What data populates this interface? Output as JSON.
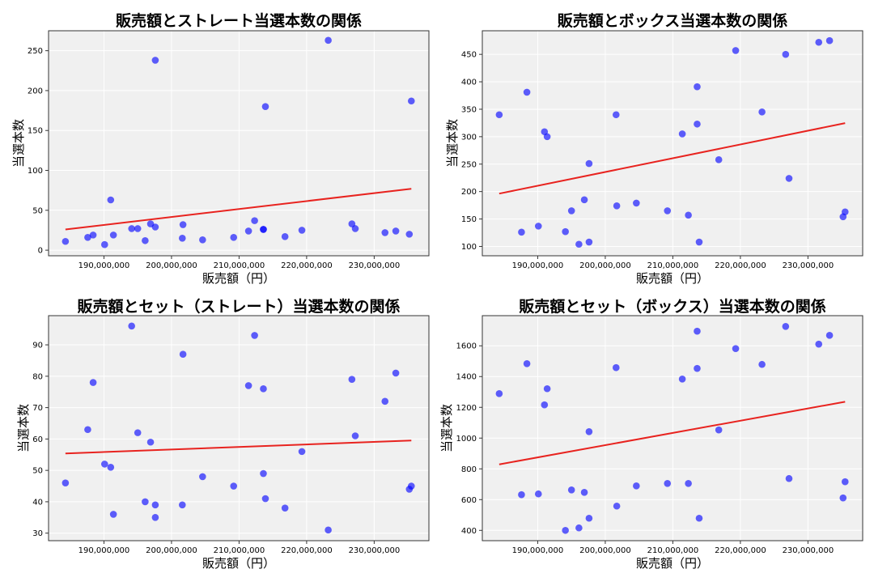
{
  "chart_data": [
    {
      "type": "scatter",
      "title": "販売額とストレート当選本数の関係",
      "xlabel": "販売額（円）",
      "ylabel": "当選本数",
      "xlim": [
        181800000,
        238100000
      ],
      "ylim": [
        -7,
        275
      ],
      "x_ticks": [
        190000000,
        200000000,
        210000000,
        220000000,
        230000000
      ],
      "y_ticks": [
        0,
        50,
        100,
        150,
        200,
        250
      ],
      "grid": true,
      "trendline": true,
      "x": [
        184300000,
        187600000,
        188400000,
        190100000,
        191000000,
        191400000,
        194100000,
        195000000,
        196100000,
        196900000,
        197600000,
        197600000,
        201600000,
        201700000,
        204600000,
        209200000,
        211400000,
        212300000,
        213600000,
        213600000,
        213900000,
        216800000,
        219300000,
        223200000,
        226700000,
        227200000,
        231600000,
        233200000,
        235200000,
        235500000
      ],
      "y": [
        11,
        16,
        19,
        7,
        63,
        19,
        27,
        27,
        12,
        33,
        29,
        238,
        15,
        32,
        13,
        16,
        24,
        37,
        26,
        26,
        180,
        17,
        25,
        263,
        33,
        27,
        22,
        24,
        20,
        187
      ]
    },
    {
      "type": "scatter",
      "title": "販売額とボックス当選本数の関係",
      "xlabel": "販売額（円）",
      "ylabel": "当選本数",
      "xlim": [
        181800000,
        238100000
      ],
      "ylim": [
        83,
        493
      ],
      "x_ticks": [
        190000000,
        200000000,
        210000000,
        220000000,
        230000000
      ],
      "y_ticks": [
        100,
        150,
        200,
        250,
        300,
        350,
        400,
        450
      ],
      "grid": true,
      "trendline": true,
      "x": [
        184300000,
        187600000,
        188400000,
        190100000,
        191000000,
        191400000,
        194100000,
        195000000,
        196100000,
        196900000,
        197600000,
        197600000,
        201600000,
        201700000,
        204600000,
        209200000,
        211400000,
        212300000,
        213600000,
        213600000,
        213900000,
        216800000,
        219300000,
        223200000,
        226700000,
        227200000,
        231600000,
        233200000,
        235200000,
        235500000
      ],
      "y": [
        340,
        126,
        381,
        137,
        309,
        300,
        127,
        165,
        104,
        185,
        251,
        108,
        340,
        174,
        179,
        165,
        305,
        157,
        323,
        391,
        108,
        258,
        457,
        345,
        450,
        224,
        472,
        475,
        154,
        163
      ]
    },
    {
      "type": "scatter",
      "title": "販売額とセット（ストレート）当選本数の関係",
      "xlabel": "販売額（円）",
      "ylabel": "当選本数",
      "xlim": [
        181800000,
        238100000
      ],
      "ylim": [
        27.6,
        99.3
      ],
      "x_ticks": [
        190000000,
        200000000,
        210000000,
        220000000,
        230000000
      ],
      "y_ticks": [
        30,
        40,
        50,
        60,
        70,
        80,
        90
      ],
      "grid": true,
      "trendline": true,
      "x": [
        184300000,
        187600000,
        188400000,
        190100000,
        191000000,
        191400000,
        194100000,
        195000000,
        196100000,
        196900000,
        197600000,
        197600000,
        201600000,
        201700000,
        204600000,
        209200000,
        211400000,
        212300000,
        213600000,
        213600000,
        213900000,
        216800000,
        219300000,
        223200000,
        226700000,
        227200000,
        231600000,
        233200000,
        235200000,
        235500000
      ],
      "y": [
        46,
        63,
        78,
        52,
        51,
        36,
        96,
        62,
        40,
        59,
        39,
        35,
        39,
        87,
        48,
        45,
        77,
        93,
        49,
        76,
        41,
        38,
        56,
        31,
        79,
        61,
        72,
        81,
        44,
        45
      ]
    },
    {
      "type": "scatter",
      "title": "販売額とセット（ボックス）当選本数の関係",
      "xlabel": "販売額（円）",
      "ylabel": "当選本数",
      "xlim": [
        181800000,
        238100000
      ],
      "ylim": [
        333,
        1796
      ],
      "x_ticks": [
        190000000,
        200000000,
        210000000,
        220000000,
        230000000
      ],
      "y_ticks": [
        400,
        600,
        800,
        1000,
        1200,
        1400,
        1600
      ],
      "grid": true,
      "trendline": true,
      "x": [
        184300000,
        187600000,
        188400000,
        190100000,
        191000000,
        191400000,
        194100000,
        195000000,
        196100000,
        196900000,
        197600000,
        197600000,
        201600000,
        201700000,
        204600000,
        209200000,
        211400000,
        212300000,
        213600000,
        213600000,
        213900000,
        216800000,
        219300000,
        223200000,
        226700000,
        227200000,
        231600000,
        233200000,
        235200000,
        235500000
      ],
      "y": [
        1289,
        632,
        1484,
        637,
        1216,
        1321,
        400,
        663,
        416,
        647,
        1042,
        479,
        1458,
        558,
        689,
        705,
        1384,
        705,
        1453,
        1695,
        479,
        1053,
        1582,
        1479,
        1726,
        737,
        1611,
        1668,
        611,
        716
      ]
    }
  ],
  "colors": {
    "point": "#0000ff",
    "trendline": "#e8231f",
    "plot_background": "#f0f0f0",
    "grid": "#ffffff"
  }
}
